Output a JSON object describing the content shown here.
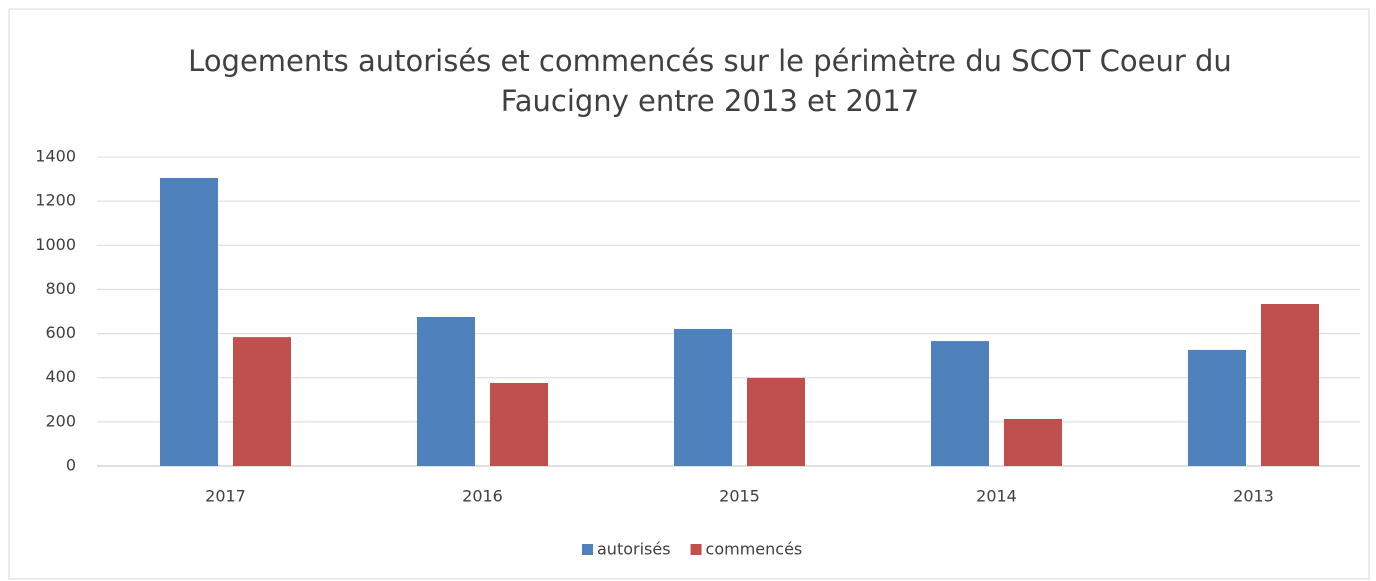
{
  "chart_data": {
    "type": "bar",
    "title": [
      "Logements autorisés et commencés sur le périmètre du SCOT Coeur du",
      "Faucigny entre 2013 et 2017"
    ],
    "categories": [
      "2017",
      "2016",
      "2015",
      "2014",
      "2013"
    ],
    "series": [
      {
        "name": "autorisés",
        "color": "#4f81bd",
        "values": [
          1305,
          675,
          621,
          566,
          526
        ]
      },
      {
        "name": "commencés",
        "color": "#c0504d",
        "values": [
          584,
          376,
          399,
          213,
          734
        ]
      }
    ],
    "ylim": [
      0,
      1400
    ],
    "yticks": [
      0,
      200,
      400,
      600,
      800,
      1000,
      1200,
      1400
    ],
    "grid": true,
    "legend": "bottom"
  }
}
